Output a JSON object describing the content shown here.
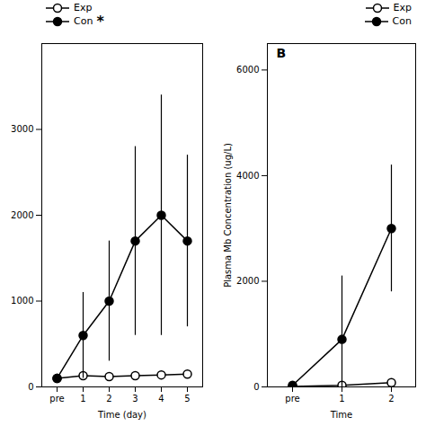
{
  "chart_data": [
    {
      "type": "line",
      "categories": [
        "pre",
        "1",
        "2",
        "3",
        "4",
        "5"
      ],
      "series": [
        {
          "name": "Exp",
          "color": "#000000",
          "marker": "open_circle",
          "values": [
            100,
            130,
            120,
            130,
            140,
            150
          ],
          "errors": [
            30,
            30,
            30,
            30,
            30,
            30
          ]
        },
        {
          "name": "Con",
          "color": "#000000",
          "marker": "filled_circle",
          "values": [
            100,
            600,
            1000,
            1700,
            2000,
            1700
          ],
          "errors": [
            50,
            500,
            700,
            1100,
            1400,
            1000
          ]
        }
      ],
      "xlabel": "Time (day)",
      "ylim": [
        0,
        4000
      ],
      "yticks": [
        0,
        1000,
        2000,
        3000
      ],
      "legend": "upper left",
      "annotations": [
        {
          "text": "*",
          "series": "Con"
        }
      ]
    },
    {
      "type": "line",
      "categories": [
        "pre",
        "1",
        "2"
      ],
      "series": [
        {
          "name": "Exp",
          "color": "#000000",
          "marker": "open_circle",
          "values": [
            10,
            30,
            80
          ],
          "errors": [
            10,
            20,
            40
          ]
        },
        {
          "name": "Con",
          "color": "#000000",
          "marker": "filled_circle",
          "values": [
            30,
            900,
            3000
          ],
          "errors": [
            20,
            1200,
            1200
          ]
        }
      ],
      "xlabel": "Time",
      "ylabel": "Plasma Mb Concentration (ug/L)",
      "ylim": [
        0,
        6500
      ],
      "yticks": [
        0,
        2000,
        4000,
        6000
      ],
      "legend": "upper right",
      "annotations": [
        {
          "text": "B"
        }
      ]
    }
  ]
}
